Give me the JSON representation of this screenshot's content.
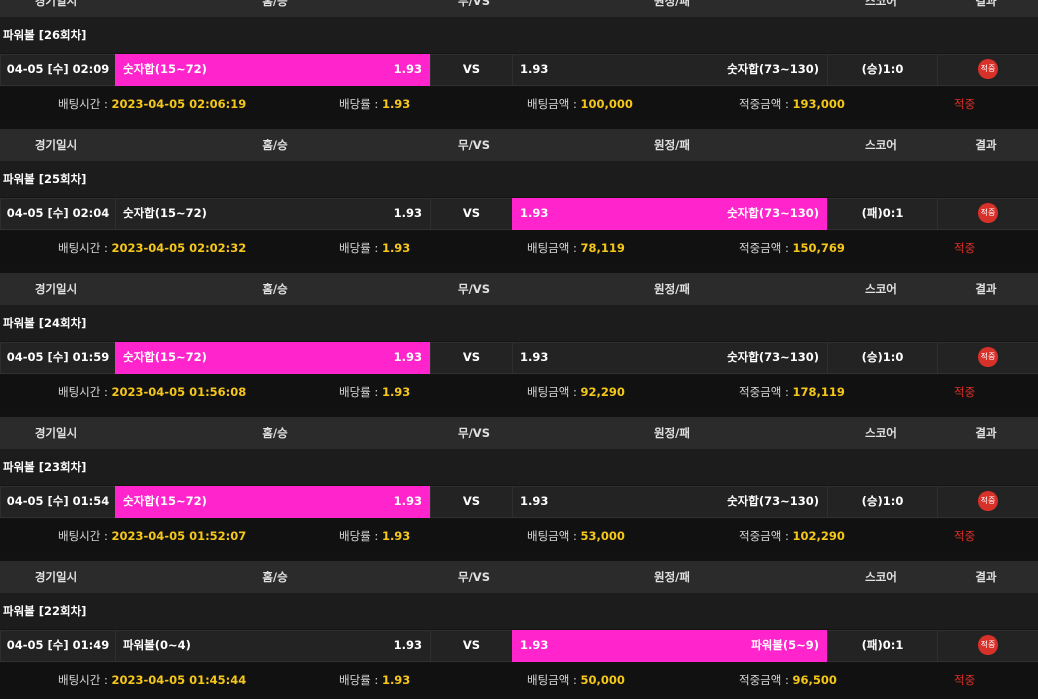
{
  "columns": [
    "경기일시",
    "홈/승",
    "무/VS",
    "원정/패",
    "스코어",
    "결과"
  ],
  "vs": "VS",
  "info_labels": {
    "bet_time": "배팅시간 :",
    "odds": "배당률 :",
    "bet_amount": "배팅금액 :",
    "win_amount": "적중금액 :"
  },
  "games": [
    {
      "title": "파워볼  [26회차]",
      "date": "04-05 [수] 02:09",
      "home": "숫자합(15~72)",
      "home_odds": "1.93",
      "away_odds": "1.93",
      "away": "숫자합(73~130)",
      "score": "(승)1:0",
      "pick": "home",
      "badge": "적중",
      "bet_time": "2023-04-05 02:06:19",
      "odds": "1.93",
      "bet_amount": "100,000",
      "win_amount": "193,000",
      "result": "적중"
    },
    {
      "title": "파워볼  [25회차]",
      "date": "04-05 [수] 02:04",
      "home": "숫자합(15~72)",
      "home_odds": "1.93",
      "away_odds": "1.93",
      "away": "숫자합(73~130)",
      "score": "(패)0:1",
      "pick": "away",
      "badge": "적중",
      "bet_time": "2023-04-05 02:02:32",
      "odds": "1.93",
      "bet_amount": "78,119",
      "win_amount": "150,769",
      "result": "적중"
    },
    {
      "title": "파워볼  [24회차]",
      "date": "04-05 [수] 01:59",
      "home": "숫자합(15~72)",
      "home_odds": "1.93",
      "away_odds": "1.93",
      "away": "숫자합(73~130)",
      "score": "(승)1:0",
      "pick": "home",
      "badge": "적중",
      "bet_time": "2023-04-05 01:56:08",
      "odds": "1.93",
      "bet_amount": "92,290",
      "win_amount": "178,119",
      "result": "적중"
    },
    {
      "title": "파워볼  [23회차]",
      "date": "04-05 [수] 01:54",
      "home": "숫자합(15~72)",
      "home_odds": "1.93",
      "away_odds": "1.93",
      "away": "숫자합(73~130)",
      "score": "(승)1:0",
      "pick": "home",
      "badge": "적중",
      "bet_time": "2023-04-05 01:52:07",
      "odds": "1.93",
      "bet_amount": "53,000",
      "win_amount": "102,290",
      "result": "적중"
    },
    {
      "title": "파워볼  [22회차]",
      "date": "04-05 [수] 01:49",
      "home": "파워볼(0~4)",
      "home_odds": "1.93",
      "away_odds": "1.93",
      "away": "파워볼(5~9)",
      "score": "(패)0:1",
      "pick": "away",
      "badge": "적중",
      "bet_time": "2023-04-05 01:45:44",
      "odds": "1.93",
      "bet_amount": "50,000",
      "win_amount": "96,500",
      "result": "적중"
    }
  ]
}
